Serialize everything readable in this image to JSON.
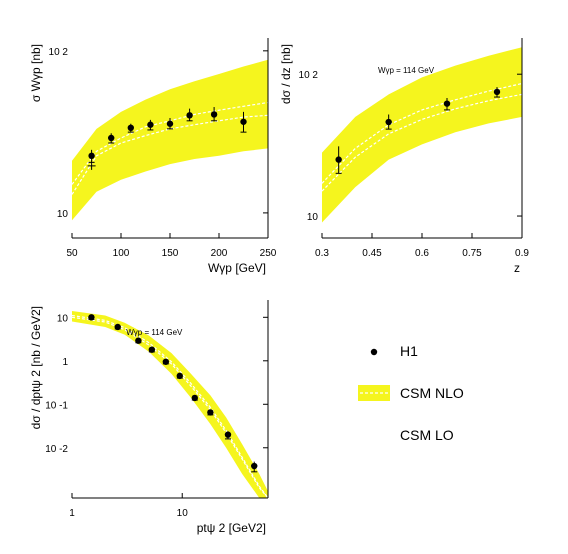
{
  "colors": {
    "nlo_band": "#f5f51e",
    "nlo_line": "#ffffff",
    "points": "#000000",
    "axis": "#000000"
  },
  "legend": {
    "entries": [
      {
        "label": "H1",
        "marker": "point"
      },
      {
        "label": "CSM NLO",
        "marker": "band"
      },
      {
        "label": "CSM LO",
        "marker": "line"
      }
    ]
  },
  "chart_data": [
    {
      "type": "scatter",
      "name": "W_gp",
      "xlabel": "Wγp  [GeV]",
      "ylabel": "σ Wγp  [nb]",
      "xlim": [
        50,
        250
      ],
      "ylim": [
        7,
        120
      ],
      "yscale": "log",
      "x_ticks": [
        {
          "v": 50,
          "label": "50"
        },
        {
          "v": 100,
          "label": "100"
        },
        {
          "v": 150,
          "label": "150"
        },
        {
          "v": 200,
          "label": "200"
        },
        {
          "v": 250,
          "label": "250"
        }
      ],
      "y_ticks": [
        {
          "v": 10,
          "label": "10"
        },
        {
          "v": 100,
          "label": "10 2"
        }
      ],
      "h1": [
        {
          "x": 70,
          "y": 22.5,
          "lo": 20.5,
          "hi": 24.5
        },
        {
          "x": 90,
          "y": 29,
          "lo": 27,
          "hi": 31
        },
        {
          "x": 110,
          "y": 33.5,
          "lo": 31.5,
          "hi": 35.5
        },
        {
          "x": 130,
          "y": 35,
          "lo": 32.5,
          "hi": 37.5
        },
        {
          "x": 150,
          "y": 35.5,
          "lo": 33,
          "hi": 38.5
        },
        {
          "x": 170,
          "y": 40,
          "lo": 37,
          "hi": 44
        },
        {
          "x": 195,
          "y": 40.5,
          "lo": 37,
          "hi": 45
        },
        {
          "x": 225,
          "y": 36.5,
          "lo": 31.5,
          "hi": 42
        }
      ],
      "extra": [
        {
          "x": 70,
          "y": 19.5
        }
      ],
      "nlo": {
        "x": [
          50,
          75,
          100,
          125,
          150,
          175,
          200,
          225,
          250
        ],
        "upper": [
          21,
          33,
          42,
          50,
          58,
          65,
          72,
          80,
          88
        ],
        "lower": [
          9,
          13.5,
          16,
          18,
          20,
          21.5,
          22.5,
          24,
          25
        ],
        "central_a": [
          15,
          24,
          29,
          34,
          37,
          40.5,
          43,
          45.5,
          48
        ],
        "central_b": [
          13,
          22.5,
          27,
          30,
          33,
          35,
          37,
          39,
          40
        ]
      }
    },
    {
      "type": "scatter",
      "name": "z",
      "annotation": "Wγp = 114 GeV",
      "xlabel": "z",
      "ylabel": "dσ / dz  [nb]",
      "xlim": [
        0.3,
        0.9
      ],
      "ylim": [
        7,
        180
      ],
      "yscale": "log",
      "x_ticks": [
        {
          "v": 0.3,
          "label": "0.3"
        },
        {
          "v": 0.45,
          "label": "0.45"
        },
        {
          "v": 0.6,
          "label": "0.6"
        },
        {
          "v": 0.75,
          "label": "0.75"
        },
        {
          "v": 0.9,
          "label": "0.9"
        }
      ],
      "y_ticks": [
        {
          "v": 10,
          "label": "10"
        },
        {
          "v": 100,
          "label": "10 2"
        }
      ],
      "h1": [
        {
          "x": 0.35,
          "y": 25,
          "lo": 20,
          "hi": 31
        },
        {
          "x": 0.5,
          "y": 46,
          "lo": 41,
          "hi": 52
        },
        {
          "x": 0.675,
          "y": 62,
          "lo": 56,
          "hi": 68
        },
        {
          "x": 0.825,
          "y": 75,
          "lo": 69,
          "hi": 81
        }
      ],
      "nlo": {
        "x": [
          0.3,
          0.4,
          0.5,
          0.6,
          0.7,
          0.8,
          0.9
        ],
        "upper": [
          28,
          50,
          72,
          95,
          115,
          135,
          155
        ],
        "lower": [
          9,
          16,
          25,
          32,
          39,
          45,
          50
        ],
        "central_a": [
          17,
          30,
          44,
          56,
          66,
          76,
          86
        ],
        "central_b": [
          15,
          26,
          38,
          48,
          57,
          65,
          72
        ]
      }
    },
    {
      "type": "scatter",
      "name": "pt2",
      "annotation": "Wγp = 114 GeV",
      "xlabel": "ptψ 2  [GeV2]",
      "ylabel": "dσ / dptψ 2 [nb / GeV2]",
      "xlim": [
        1,
        60
      ],
      "ylim": [
        0.0007,
        25
      ],
      "xscale": "log",
      "yscale": "log",
      "x_ticks": [
        {
          "v": 1,
          "label": "1"
        },
        {
          "v": 10,
          "label": "10"
        }
      ],
      "y_ticks": [
        {
          "v": 10,
          "label": "10"
        },
        {
          "v": 1,
          "label": "1"
        },
        {
          "v": 0.1,
          "label": "10 -1"
        },
        {
          "v": 0.01,
          "label": "10 -2"
        }
      ],
      "h1": [
        {
          "x": 1.5,
          "y": 10,
          "lo": 9,
          "hi": 11
        },
        {
          "x": 2.6,
          "y": 6,
          "lo": 5.4,
          "hi": 6.6
        },
        {
          "x": 4.0,
          "y": 2.9,
          "lo": 2.6,
          "hi": 3.2
        },
        {
          "x": 5.3,
          "y": 1.8,
          "lo": 1.6,
          "hi": 2.0
        },
        {
          "x": 7.1,
          "y": 0.95,
          "lo": 0.85,
          "hi": 1.05
        },
        {
          "x": 9.5,
          "y": 0.45,
          "lo": 0.4,
          "hi": 0.5
        },
        {
          "x": 13,
          "y": 0.14,
          "lo": 0.125,
          "hi": 0.155
        },
        {
          "x": 18,
          "y": 0.065,
          "lo": 0.057,
          "hi": 0.073
        },
        {
          "x": 26,
          "y": 0.02,
          "lo": 0.016,
          "hi": 0.024
        },
        {
          "x": 45,
          "y": 0.0038,
          "lo": 0.0028,
          "hi": 0.0048
        }
      ],
      "nlo": {
        "x": [
          1,
          2,
          3,
          5,
          8,
          12,
          18,
          25,
          35,
          50,
          60
        ],
        "upper": [
          14,
          11,
          7.5,
          3.8,
          1.5,
          0.5,
          0.16,
          0.05,
          0.012,
          0.0025,
          0.001
        ],
        "lower": [
          8,
          6,
          4,
          1.6,
          0.5,
          0.14,
          0.035,
          0.01,
          0.0025,
          0.0007,
          0.0007
        ],
        "central_a": [
          11,
          8.5,
          5.8,
          2.6,
          0.95,
          0.3,
          0.085,
          0.025,
          0.006,
          0.0013,
          0.0007
        ],
        "central_b": [
          10,
          7.8,
          5.2,
          2.3,
          0.85,
          0.26,
          0.075,
          0.022,
          0.0055,
          0.0012,
          0.0007
        ]
      }
    }
  ]
}
